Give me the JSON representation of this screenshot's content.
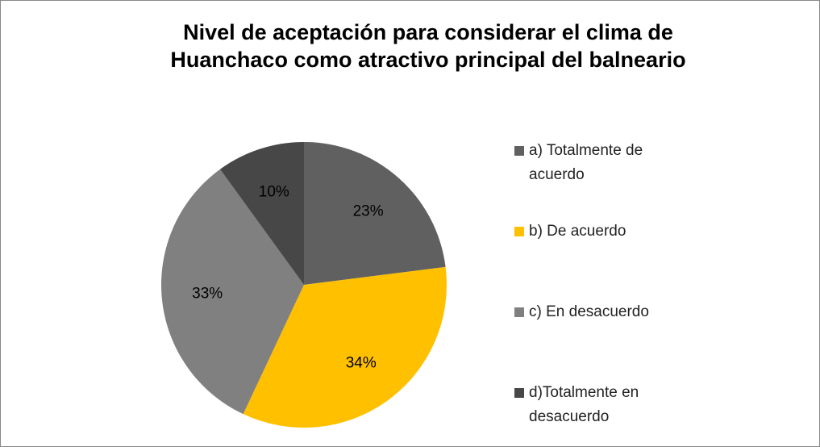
{
  "chart_data": {
    "type": "pie",
    "title": [
      "Nivel de aceptación  para considerar  el clima de",
      "Huanchaco como atractivo principal del balneario"
    ],
    "categories": [
      "a) Totalmente de acuerdo",
      "b) De acuerdo",
      "c) En desacuerdo",
      "d)Totalmente en desacuerdo"
    ],
    "values": [
      23,
      34,
      33,
      10
    ],
    "value_labels": [
      "23%",
      "34%",
      "33%",
      "10%"
    ],
    "colors": [
      "#606060",
      "#ffc000",
      "#808080",
      "#474747"
    ],
    "legend": "right"
  }
}
